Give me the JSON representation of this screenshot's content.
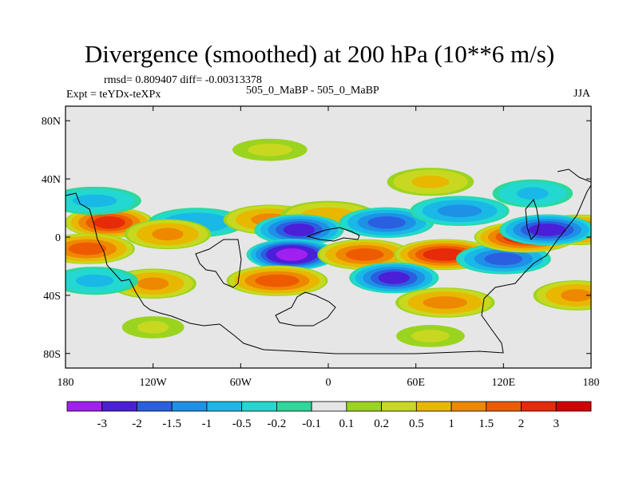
{
  "header": {
    "title": "Divergence (smoothed) at 200 hPa (10**6 m/s)",
    "stats": "rmsd= 0.809407 diff= -0.00313378",
    "experiment": "Expt = teYDx-teXPx",
    "runs": "505_0_MaBP - 505_0_MaBP",
    "season": "JJA"
  },
  "chart_data": {
    "type": "heatmap",
    "title": "Divergence (smoothed) at 200 hPa (10**6 m/s)",
    "projection": "cylindrical equidistant",
    "xlim": [
      -180,
      180
    ],
    "ylim": [
      -90,
      90
    ],
    "x_ticks": [
      {
        "value": -180,
        "label": "180"
      },
      {
        "value": -120,
        "label": "120W"
      },
      {
        "value": -60,
        "label": "60W"
      },
      {
        "value": 0,
        "label": "0"
      },
      {
        "value": 60,
        "label": "60E"
      },
      {
        "value": 120,
        "label": "120E"
      },
      {
        "value": 180,
        "label": "180"
      }
    ],
    "y_ticks": [
      {
        "value": 80,
        "label": "80N"
      },
      {
        "value": 40,
        "label": "40N"
      },
      {
        "value": 0,
        "label": "0"
      },
      {
        "value": -40,
        "label": "40S"
      },
      {
        "value": -80,
        "label": "80S"
      }
    ],
    "colorbar": {
      "levels": [
        -3,
        -2,
        -1.5,
        -1,
        -0.5,
        -0.2,
        -0.1,
        0.1,
        0.2,
        0.5,
        1,
        1.5,
        2,
        3
      ],
      "labels": [
        "-3",
        "-2",
        "-1.5",
        "-1",
        "-0.5",
        "-0.2",
        "-0.1",
        "0.1",
        "0.2",
        "0.5",
        "1",
        "1.5",
        "2",
        "3"
      ],
      "colors": [
        "#a020f0",
        "#4b1fd8",
        "#2a5fe0",
        "#1e90e6",
        "#19b8e6",
        "#22d8d0",
        "#2cd89a",
        "#e6e6e6",
        "#9bd41e",
        "#c8d820",
        "#e8b800",
        "#ee8800",
        "#ee5a00",
        "#e62a0a",
        "#d40000"
      ]
    },
    "features": [
      {
        "type": "positive",
        "lon": -150,
        "lat": 10,
        "value": 2.0
      },
      {
        "type": "positive",
        "lon": -165,
        "lat": -8,
        "value": 1.5
      },
      {
        "type": "negative",
        "lon": -90,
        "lat": 10,
        "value": -0.8
      },
      {
        "type": "positive",
        "lon": -110,
        "lat": 2,
        "value": 1.0
      },
      {
        "type": "positive",
        "lon": -40,
        "lat": 12,
        "value": 1.0
      },
      {
        "type": "positive",
        "lon": 0,
        "lat": 15,
        "value": 0.6
      },
      {
        "type": "negative",
        "lon": -20,
        "lat": 5,
        "value": -2.0
      },
      {
        "type": "negative",
        "lon": 40,
        "lat": 10,
        "value": -1.5
      },
      {
        "type": "negative",
        "lon": 90,
        "lat": 18,
        "value": -1.0
      },
      {
        "type": "negative",
        "lon": -25,
        "lat": -12,
        "value": -3.0
      },
      {
        "type": "positive",
        "lon": 25,
        "lat": -12,
        "value": 1.5
      },
      {
        "type": "positive",
        "lon": 80,
        "lat": -12,
        "value": 2.0
      },
      {
        "type": "negative",
        "lon": 45,
        "lat": -28,
        "value": -2.0
      },
      {
        "type": "negative",
        "lon": 120,
        "lat": -15,
        "value": -1.5
      },
      {
        "type": "positive",
        "lon": 135,
        "lat": 0,
        "value": 2.0
      },
      {
        "type": "positive",
        "lon": 172,
        "lat": 5,
        "value": 1.5
      },
      {
        "type": "negative",
        "lon": 150,
        "lat": 5,
        "value": -2.0
      },
      {
        "type": "positive",
        "lon": -35,
        "lat": -30,
        "value": 1.5
      },
      {
        "type": "positive",
        "lon": -120,
        "lat": -32,
        "value": 1.0
      },
      {
        "type": "negative",
        "lon": -160,
        "lat": -30,
        "value": -0.5
      },
      {
        "type": "positive",
        "lon": 80,
        "lat": -45,
        "value": 1.0
      },
      {
        "type": "positive",
        "lon": 170,
        "lat": -40,
        "value": 1.0
      },
      {
        "type": "positive",
        "lon": 70,
        "lat": 38,
        "value": 0.5
      },
      {
        "type": "positive",
        "lon": -40,
        "lat": 60,
        "value": 0.2
      },
      {
        "type": "positive",
        "lon": -120,
        "lat": -62,
        "value": 0.2
      },
      {
        "type": "positive",
        "lon": 70,
        "lat": -68,
        "value": 0.2
      },
      {
        "type": "negative",
        "lon": -160,
        "lat": 25,
        "value": -0.5
      },
      {
        "type": "negative",
        "lon": 140,
        "lat": 30,
        "value": -0.5
      }
    ]
  }
}
